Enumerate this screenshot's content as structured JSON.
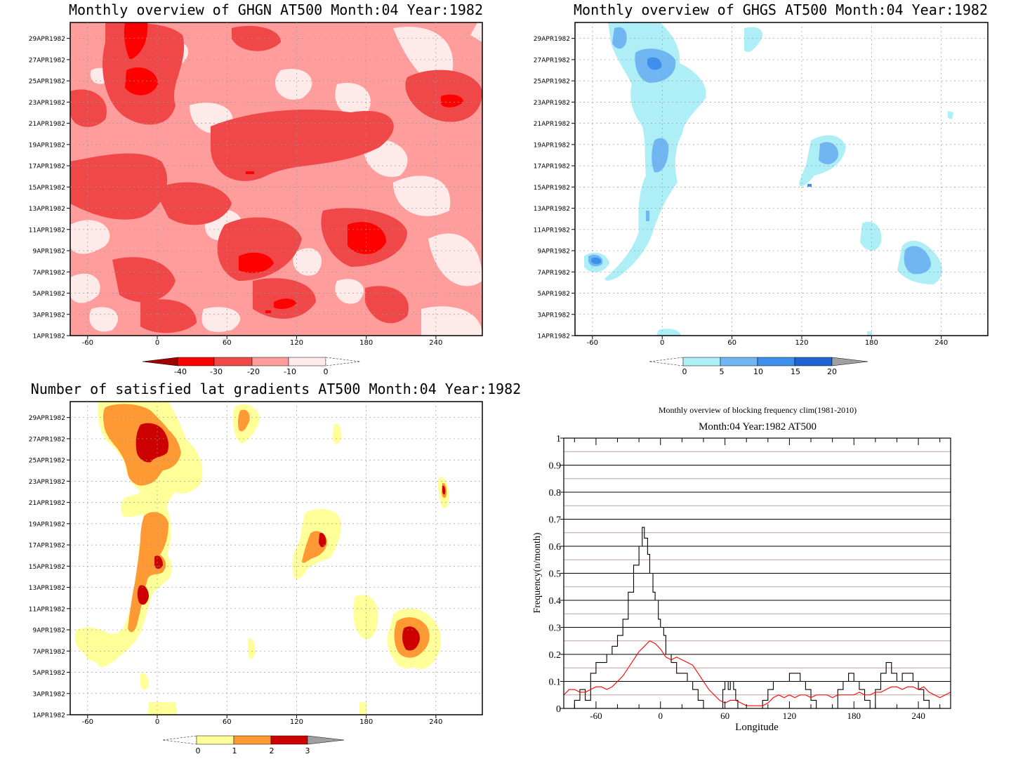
{
  "colors": {
    "ghgn": [
      "#ffeaea",
      "#ff9c9c",
      "#f04848",
      "#ff0000",
      "#a00000"
    ],
    "ghgs": [
      "#aeeef6",
      "#70b6f2",
      "#3c8fea",
      "#1e64d2",
      "#a0a0a0"
    ],
    "grad": [
      "#ffff99",
      "#ff9933",
      "#cc0000",
      "#a0a0a0"
    ],
    "black_line": "#000000",
    "red_line": "#ff0000",
    "grid_dark": "#000000",
    "grid_light": "#c0a0a0"
  },
  "date_ticks": [
    "1APR1982",
    "3APR1982",
    "5APR1982",
    "7APR1982",
    "9APR1982",
    "11APR1982",
    "13APR1982",
    "15APR1982",
    "17APR1982",
    "19APR1982",
    "21APR1982",
    "23APR1982",
    "25APR1982",
    "27APR1982",
    "29APR1982"
  ],
  "lon_ticks": [
    "-60",
    "0",
    "60",
    "120",
    "180",
    "240"
  ],
  "panels": {
    "ghgn": {
      "title": "Monthly overview of GHGN AT500 Month:04 Year:1982",
      "colorbar_labels": [
        "-40",
        "-30",
        "-20",
        "-10",
        "0"
      ]
    },
    "ghgs": {
      "title": "Monthly overview of GHGS AT500 Month:04 Year:1982",
      "colorbar_labels": [
        "0",
        "5",
        "10",
        "15",
        "20"
      ]
    },
    "grad": {
      "title": "Number of satisfied lat gradients AT500 Month:04 Year:1982",
      "colorbar_labels": [
        "0",
        "1",
        "2",
        "3"
      ]
    }
  },
  "chart_data": [
    {
      "type": "heatmap",
      "title": "Monthly overview of GHGN AT500 Month:04 Year:1982",
      "x_ticks": [
        -60,
        0,
        60,
        120,
        180,
        240
      ],
      "xlim": [
        -75,
        280
      ],
      "y_ticks": [
        "1APR1982",
        "3APR1982",
        "5APR1982",
        "7APR1982",
        "9APR1982",
        "11APR1982",
        "13APR1982",
        "15APR1982",
        "17APR1982",
        "19APR1982",
        "21APR1982",
        "23APR1982",
        "25APR1982",
        "27APR1982",
        "29APR1982"
      ],
      "levels": [
        -40,
        -30,
        -20,
        -10,
        0
      ],
      "minimum_regions": [
        {
          "lon": -15,
          "date": "25APR1982",
          "level": -30
        },
        {
          "lon": -15,
          "date": "29APR1982",
          "level": -30
        },
        {
          "lon": 185,
          "date": "10APR1982",
          "level": -30
        },
        {
          "lon": 85,
          "date": "7APR1982",
          "level": -30
        },
        {
          "lon": 105,
          "date": "4APR1982",
          "level": -30
        },
        {
          "lon": 250,
          "date": "23APR1982",
          "level": -30
        }
      ]
    },
    {
      "type": "heatmap",
      "title": "Monthly overview of GHGS AT500 Month:04 Year:1982",
      "x_ticks": [
        -60,
        0,
        60,
        120,
        180,
        240
      ],
      "xlim": [
        -75,
        280
      ],
      "y_ticks": [
        "1APR1982",
        "3APR1982",
        "5APR1982",
        "7APR1982",
        "9APR1982",
        "11APR1982",
        "13APR1982",
        "15APR1982",
        "17APR1982",
        "19APR1982",
        "21APR1982",
        "23APR1982",
        "25APR1982",
        "27APR1982",
        "29APR1982"
      ],
      "levels": [
        0,
        5,
        10,
        15,
        20
      ],
      "maximum_regions": [
        {
          "lon": -10,
          "date": "26APR1982",
          "level": 15
        },
        {
          "lon": -45,
          "date": "29APR1982",
          "level": 10
        },
        {
          "lon": -5,
          "date": "18APR1982",
          "level": 10
        },
        {
          "lon": 140,
          "date": "17APR1982",
          "level": 10
        },
        {
          "lon": 215,
          "date": "8APR1982",
          "level": 10
        },
        {
          "lon": -62,
          "date": "8APR1982",
          "level": 15
        }
      ]
    },
    {
      "type": "heatmap",
      "title": "Number of satisfied lat gradients AT500 Month:04 Year:1982",
      "x_ticks": [
        -60,
        0,
        60,
        120,
        180,
        240
      ],
      "xlim": [
        -75,
        280
      ],
      "y_ticks": [
        "1APR1982",
        "3APR1982",
        "5APR1982",
        "7APR1982",
        "9APR1982",
        "11APR1982",
        "13APR1982",
        "15APR1982",
        "17APR1982",
        "19APR1982",
        "21APR1982",
        "23APR1982",
        "25APR1982",
        "27APR1982",
        "29APR1982"
      ],
      "levels": [
        0,
        1,
        2,
        3
      ],
      "maximum_regions": [
        {
          "lon": -15,
          "date": "27APR1982",
          "level": 3
        },
        {
          "lon": -15,
          "date": "11APR1982",
          "level": 3
        },
        {
          "lon": -2,
          "date": "15APR1982",
          "level": 3
        },
        {
          "lon": 215,
          "date": "8APR1982",
          "level": 3
        },
        {
          "lon": 250,
          "date": "22APR1982",
          "level": 3
        }
      ]
    },
    {
      "type": "line",
      "title": "Monthly overview of blocking frequency clim(1981-2010)",
      "subtitle": "Month:04 Year:1982  AT500",
      "xlabel": "Longitude",
      "ylabel": "Frequency(n/month)",
      "xlim": [
        -90,
        270
      ],
      "ylim": [
        0,
        1
      ],
      "x_ticks": [
        -60,
        0,
        60,
        120,
        180,
        240
      ],
      "y_ticks": [
        0,
        0.1,
        0.2,
        0.3,
        0.4,
        0.5,
        0.6,
        0.7,
        0.8,
        0.9,
        1
      ],
      "series": [
        {
          "color": "#000000",
          "x": [
            -90,
            -82,
            -80,
            -75,
            -70,
            -65,
            -60,
            -55,
            -50,
            -45,
            -40,
            -35,
            -30,
            -25,
            -20,
            -17,
            -15,
            -12,
            -10,
            -7,
            -5,
            -2,
            0,
            3,
            5,
            8,
            10,
            15,
            20,
            25,
            30,
            35,
            40,
            45,
            50,
            55,
            58,
            60,
            63,
            65,
            68,
            70,
            72,
            75,
            80,
            85,
            90,
            95,
            100,
            105,
            110,
            115,
            120,
            125,
            130,
            135,
            140,
            145,
            150,
            155,
            160,
            165,
            170,
            175,
            180,
            185,
            190,
            195,
            200,
            205,
            210,
            215,
            220,
            225,
            230,
            235,
            240,
            245,
            250,
            255,
            260,
            265,
            270
          ],
          "y": [
            0,
            0,
            0.03,
            0.07,
            0.03,
            0.13,
            0.17,
            0.17,
            0.2,
            0.23,
            0.27,
            0.33,
            0.43,
            0.53,
            0.6,
            0.67,
            0.63,
            0.57,
            0.5,
            0.43,
            0.4,
            0.33,
            0.3,
            0.27,
            0.2,
            0.2,
            0.17,
            0.13,
            0.13,
            0.1,
            0.07,
            0.03,
            0,
            0,
            0,
            0,
            0.07,
            0.1,
            0.07,
            0.1,
            0.07,
            0.03,
            0,
            0,
            0,
            0,
            0,
            0.03,
            0.07,
            0.1,
            0.1,
            0.1,
            0.13,
            0.13,
            0.1,
            0.07,
            0.03,
            0,
            0,
            0,
            0,
            0.07,
            0.1,
            0.13,
            0.1,
            0.07,
            0.03,
            0,
            0.07,
            0.13,
            0.17,
            0.13,
            0.1,
            0.13,
            0.13,
            0.1,
            0.07,
            0.03,
            0,
            0,
            0,
            0,
            0
          ]
        },
        {
          "color": "#ff0000",
          "x": [
            -90,
            -85,
            -80,
            -75,
            -70,
            -65,
            -60,
            -55,
            -50,
            -45,
            -40,
            -35,
            -30,
            -25,
            -20,
            -15,
            -10,
            -5,
            0,
            5,
            10,
            15,
            20,
            25,
            30,
            35,
            40,
            45,
            50,
            55,
            60,
            65,
            70,
            75,
            80,
            85,
            90,
            95,
            100,
            105,
            110,
            115,
            120,
            125,
            130,
            135,
            140,
            145,
            150,
            155,
            160,
            165,
            170,
            175,
            180,
            185,
            190,
            195,
            200,
            205,
            210,
            215,
            220,
            225,
            230,
            235,
            240,
            245,
            250,
            255,
            260,
            265,
            270
          ],
          "y": [
            0.05,
            0.07,
            0.07,
            0.06,
            0.06,
            0.07,
            0.08,
            0.08,
            0.07,
            0.08,
            0.1,
            0.12,
            0.15,
            0.18,
            0.21,
            0.23,
            0.25,
            0.24,
            0.22,
            0.19,
            0.18,
            0.19,
            0.18,
            0.17,
            0.16,
            0.13,
            0.1,
            0.07,
            0.05,
            0.03,
            0.02,
            0.03,
            0.03,
            0.02,
            0.01,
            0.01,
            0.01,
            0.01,
            0.02,
            0.04,
            0.05,
            0.04,
            0.05,
            0.04,
            0.05,
            0.05,
            0.04,
            0.05,
            0.05,
            0.05,
            0.04,
            0.05,
            0.05,
            0.05,
            0.05,
            0.06,
            0.05,
            0.05,
            0.06,
            0.06,
            0.07,
            0.08,
            0.08,
            0.07,
            0.08,
            0.08,
            0.07,
            0.08,
            0.06,
            0.05,
            0.04,
            0.05,
            0.06
          ]
        }
      ]
    }
  ],
  "line_chart": {
    "title": "Monthly overview of blocking frequency clim(1981-2010)",
    "subtitle": "Month:04 Year:1982  AT500",
    "xlabel": "Longitude",
    "ylabel": "Frequency(n/month)",
    "y_tick_labels": [
      "0",
      "0.1",
      "0.2",
      "0.3",
      "0.4",
      "0.5",
      "0.6",
      "0.7",
      "0.8",
      "0.9",
      "1"
    ],
    "x_tick_labels": [
      "-60",
      "0",
      "60",
      "120",
      "180",
      "240"
    ]
  }
}
